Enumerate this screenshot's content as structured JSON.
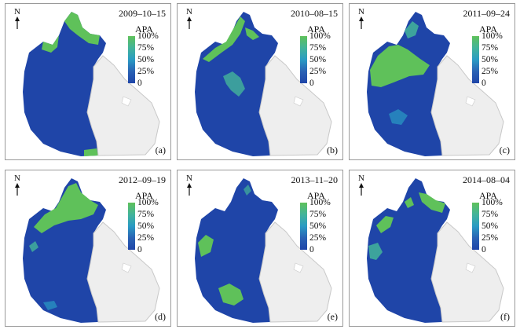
{
  "figure": {
    "legend_title": "APA",
    "legend_ticks": [
      "100%",
      "75%",
      "50%",
      "25%",
      "0"
    ],
    "north_label": "N",
    "colors": {
      "water_low": "#1f45a8",
      "water_high": "#5fc15a",
      "land": "#eeeeee",
      "land_outline": "#c8c8c8"
    },
    "panels": [
      {
        "date": "2009–10–15",
        "letter": "(a)"
      },
      {
        "date": "2010–08–15",
        "letter": "(b)"
      },
      {
        "date": "2011–09–24",
        "letter": "(c)"
      },
      {
        "date": "2012–09–19",
        "letter": "(d)"
      },
      {
        "date": "2013–11–20",
        "letter": "(e)"
      },
      {
        "date": "2014–08–04",
        "letter": "(f)"
      }
    ]
  }
}
